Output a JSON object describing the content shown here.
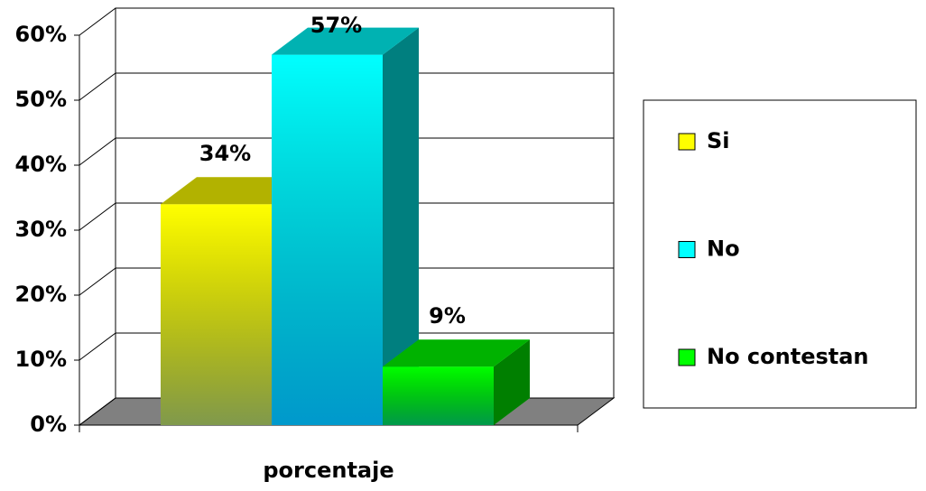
{
  "chart_data": {
    "type": "bar3d",
    "categories": [
      "porcentaje"
    ],
    "series": [
      {
        "name": "Si",
        "color": "#ffff00",
        "values": [
          34
        ],
        "value_labels": [
          "34%"
        ]
      },
      {
        "name": "No",
        "color": "#00ffff",
        "values": [
          57
        ],
        "value_labels": [
          "57%"
        ]
      },
      {
        "name": "No contestan",
        "color": "#00ff00",
        "values": [
          9
        ],
        "value_labels": [
          "9%"
        ]
      }
    ],
    "ylim": [
      0,
      60
    ],
    "yticks": [
      {
        "value": 0,
        "label": "0%"
      },
      {
        "value": 10,
        "label": "10%"
      },
      {
        "value": 20,
        "label": "20%"
      },
      {
        "value": 30,
        "label": "30%"
      },
      {
        "value": 40,
        "label": "40%"
      },
      {
        "value": 50,
        "label": "50%"
      },
      {
        "value": 60,
        "label": "60%"
      }
    ],
    "grid": true,
    "legend": "right"
  }
}
